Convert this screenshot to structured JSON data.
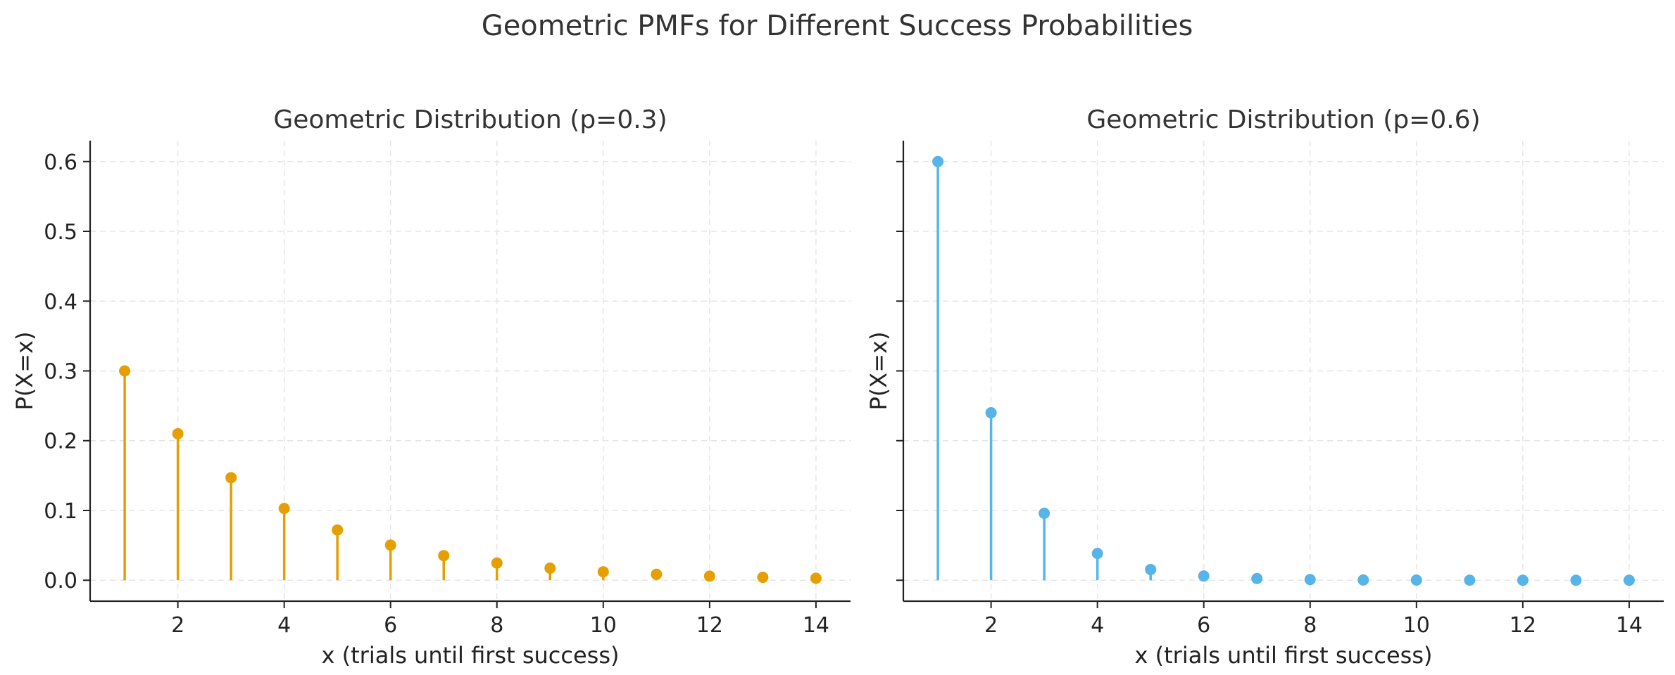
{
  "figure": {
    "title": "Geometric PMFs for Different Success Probabilities"
  },
  "chart_data": [
    {
      "type": "stem",
      "title": "Geometric Distribution (p=0.3)",
      "xlabel": "x (trials until first success)",
      "ylabel": "P(X=x)",
      "color": "#E69F00",
      "xlim": [
        0.35,
        14.65
      ],
      "ylim": [
        -0.03,
        0.63
      ],
      "xticks": [
        2,
        4,
        6,
        8,
        10,
        12,
        14
      ],
      "yticks": [
        0.0,
        0.1,
        0.2,
        0.3,
        0.4,
        0.5,
        0.6
      ],
      "ytick_labels": [
        "0.0",
        "0.1",
        "0.2",
        "0.3",
        "0.4",
        "0.5",
        "0.6"
      ],
      "show_ytick_labels": true,
      "grid": true,
      "x": [
        1,
        2,
        3,
        4,
        5,
        6,
        7,
        8,
        9,
        10,
        11,
        12,
        13,
        14
      ],
      "y": [
        0.3,
        0.21,
        0.147,
        0.1029,
        0.072,
        0.0504,
        0.0353,
        0.0247,
        0.0173,
        0.0121,
        0.0085,
        0.0059,
        0.0042,
        0.0029
      ]
    },
    {
      "type": "stem",
      "title": "Geometric Distribution (p=0.6)",
      "xlabel": "x (trials until first success)",
      "ylabel": "P(X=x)",
      "color": "#56B4E9",
      "xlim": [
        0.35,
        14.65
      ],
      "ylim": [
        -0.03,
        0.63
      ],
      "xticks": [
        2,
        4,
        6,
        8,
        10,
        12,
        14
      ],
      "yticks": [
        0.0,
        0.1,
        0.2,
        0.3,
        0.4,
        0.5,
        0.6
      ],
      "ytick_labels": [
        "0.0",
        "0.1",
        "0.2",
        "0.3",
        "0.4",
        "0.5",
        "0.6"
      ],
      "show_ytick_labels": false,
      "grid": true,
      "x": [
        1,
        2,
        3,
        4,
        5,
        6,
        7,
        8,
        9,
        10,
        11,
        12,
        13,
        14
      ],
      "y": [
        0.6,
        0.24,
        0.096,
        0.0384,
        0.0154,
        0.0061,
        0.0025,
        0.001,
        0.0004,
        0.0002,
        0.0001,
        0.0,
        0.0,
        0.0
      ]
    }
  ]
}
